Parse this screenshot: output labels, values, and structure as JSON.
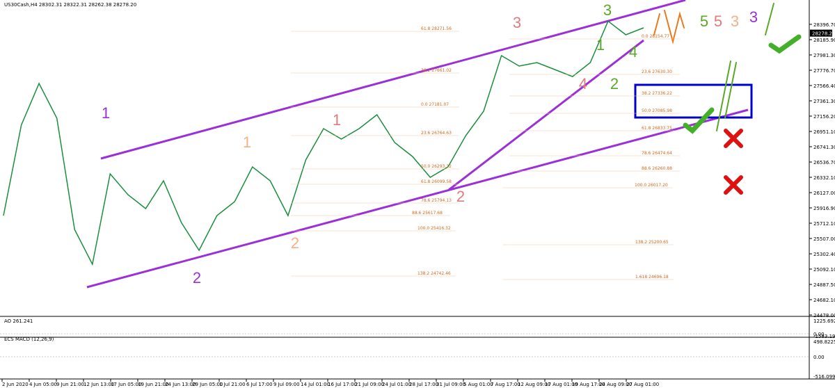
{
  "header": "US30Cash,H4 28302.31 28322.31 28262.38 28278.20",
  "current_price": "28278.20",
  "price_axis": [
    "28396.70",
    "28185.90",
    "27981.30",
    "27776.70",
    "27566.40",
    "27361.30",
    "27156.20",
    "26951.10",
    "26741.30",
    "26536.70",
    "26332.10",
    "26127.00",
    "25916.90",
    "25712.10",
    "25507.00",
    "25302.40",
    "25092.10",
    "24887.50",
    "24682.10",
    "24478.00"
  ],
  "time_axis": [
    "2 Jun 2020",
    "4 Jun 05:00",
    "9 Jun 21:00",
    "12 Jun 13:00",
    "17 Jun 05:00",
    "19 Jun 21:00",
    "24 Jun 13:00",
    "29 Jun 05:00",
    "1 Jul 21:00",
    "6 Jul 17:00",
    "9 Jul 09:00",
    "14 Jul 01:00",
    "16 Jul 17:00",
    "21 Jul 09:00",
    "24 Jul 01:00",
    "28 Jul 17:00",
    "31 Jul 09:00",
    "5 Aug 01:00",
    "7 Aug 17:00",
    "12 Aug 09:00",
    "17 Aug 01:00",
    "19 Aug 17:00",
    "24 Aug 09:00",
    "27 Aug 01:00"
  ],
  "price_path": [
    25818,
    27037,
    27600,
    27131,
    25631,
    25162,
    26381,
    26100,
    25912,
    26287,
    25725,
    25350,
    25818,
    26006,
    26475,
    26287,
    25818,
    26568,
    26990,
    26850,
    26990,
    27178,
    26803,
    26615,
    26334,
    26475,
    26897,
    27225,
    27975,
    27834,
    27881,
    27787,
    27693,
    27881,
    28440,
    28256,
    28350
  ],
  "fib_labels": [
    "61.8 28271.56",
    "0.0 28154.77",
    "38.2 27661.02",
    "23.6 27630.30",
    "38.2 27336.22",
    "0.0 27181.07",
    "50.0 27085.98",
    "23.6 26764.63",
    "61.8 26833.75",
    "78.6 26474.64",
    "50.0 26293.32",
    "88.6 26260.88",
    "61.8 26099.58",
    "100.0 26017.20",
    "78.6 25794.13",
    "88.6 25617.68",
    "100.0 25416.32",
    "138.2 25200.65",
    "138.2 24742.46",
    "1.618 24696.18"
  ],
  "wave_labels": [
    "1",
    "2",
    "3",
    "1",
    "2",
    "3",
    "1",
    "2",
    "3",
    "4",
    "5",
    "1",
    "2",
    "3",
    "4",
    "5"
  ],
  "ao": {
    "title": "AO 261.241",
    "axis": [
      "1225.692",
      "0.00",
      "-1583.194"
    ]
  },
  "macd": {
    "title": "ECS MACD (12,26,9)",
    "axis": [
      "498.8225",
      "0.00",
      "-516.0996"
    ]
  }
}
